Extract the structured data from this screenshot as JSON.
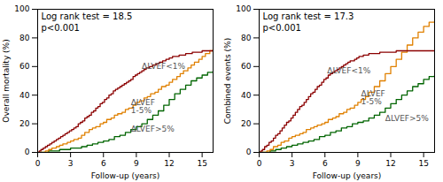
{
  "chart_data": [
    {
      "type": "step",
      "title": "Log rank test = 18.5",
      "subtitle": "p<0.001",
      "x_label": "Follow-up (years)",
      "y_label": "Overall mortality (%)",
      "xlim": [
        0,
        16
      ],
      "ylim": [
        0,
        100
      ],
      "xticks": [
        0,
        3,
        6,
        9,
        12,
        15
      ],
      "yticks": [
        0,
        20,
        40,
        60,
        80,
        100
      ],
      "grid": false,
      "series": [
        {
          "color": "#006400",
          "x": [
            0,
            0.5,
            1.0,
            1.5,
            2.0,
            2.5,
            3.0,
            3.5,
            4.0,
            4.5,
            5.0,
            5.5,
            6.0,
            6.5,
            7.0,
            7.5,
            8.0,
            8.5,
            9.0,
            9.5,
            10.0,
            10.5,
            11.0,
            11.5,
            12.0,
            12.5,
            13.0,
            13.5,
            14.0,
            14.5,
            15.0,
            15.5,
            16.0
          ],
          "values": [
            0,
            0,
            1,
            1,
            2,
            2,
            3,
            3,
            4,
            5,
            6,
            7,
            8,
            9,
            11,
            12,
            14,
            16,
            18,
            20,
            23,
            26,
            29,
            33,
            37,
            41,
            44,
            47,
            50,
            52,
            54,
            56,
            57
          ]
        },
        {
          "color": "#e08000",
          "x": [
            0,
            0.3,
            0.7,
            1.0,
            1.3,
            1.7,
            2.0,
            2.3,
            2.7,
            3.0,
            3.3,
            3.7,
            4.0,
            4.3,
            4.7,
            5.0,
            5.3,
            5.7,
            6.0,
            6.3,
            6.7,
            7.0,
            7.3,
            7.7,
            8.0,
            8.3,
            8.7,
            9.0,
            9.3,
            9.7,
            10.0,
            10.3,
            10.7,
            11.0,
            11.3,
            11.7,
            12.0,
            12.3,
            12.7,
            13.0,
            13.3,
            13.7,
            14.0,
            14.3,
            14.7,
            15.0,
            15.3,
            15.7,
            16.0
          ],
          "values": [
            0,
            0,
            1,
            2,
            3,
            4,
            5,
            6,
            7,
            8,
            9,
            10,
            12,
            14,
            16,
            17,
            18,
            20,
            21,
            23,
            24,
            26,
            27,
            28,
            30,
            31,
            33,
            35,
            36,
            38,
            39,
            41,
            42,
            44,
            46,
            47,
            49,
            51,
            53,
            55,
            57,
            59,
            61,
            63,
            65,
            67,
            69,
            71,
            72
          ]
        },
        {
          "color": "#8b0000",
          "x": [
            0,
            0.15,
            0.3,
            0.5,
            0.7,
            0.9,
            1.1,
            1.3,
            1.5,
            1.7,
            1.9,
            2.1,
            2.3,
            2.5,
            2.7,
            2.9,
            3.1,
            3.3,
            3.5,
            3.7,
            3.9,
            4.1,
            4.3,
            4.5,
            4.7,
            4.9,
            5.1,
            5.3,
            5.5,
            5.7,
            5.9,
            6.1,
            6.3,
            6.5,
            6.7,
            6.9,
            7.1,
            7.3,
            7.5,
            7.7,
            7.9,
            8.1,
            8.3,
            8.5,
            8.7,
            8.9,
            9.1,
            9.3,
            9.5,
            9.7,
            9.9,
            10.2,
            10.5,
            10.8,
            11.1,
            11.4,
            11.7,
            12.0,
            12.3,
            12.6,
            12.9,
            13.2,
            13.5,
            13.8,
            14.1,
            14.4,
            14.7,
            15.0,
            15.3,
            15.6,
            16.0
          ],
          "values": [
            0,
            1,
            2,
            3,
            4,
            5,
            6,
            7,
            8,
            9,
            10,
            11,
            12,
            13,
            14,
            15,
            16,
            17,
            18,
            20,
            21,
            22,
            24,
            25,
            26,
            28,
            29,
            31,
            32,
            34,
            35,
            37,
            38,
            40,
            41,
            43,
            44,
            45,
            46,
            47,
            48,
            49,
            50,
            51,
            53,
            54,
            55,
            56,
            57,
            58,
            59,
            60,
            61,
            62,
            63,
            64,
            65,
            66,
            67,
            67,
            68,
            68,
            69,
            69,
            70,
            70,
            70,
            71,
            71,
            71,
            71
          ]
        }
      ],
      "annotations": [
        {
          "x": 9.5,
          "y": 60,
          "text": "ΔLVEF<1%"
        },
        {
          "x": 8.5,
          "y": 32,
          "text": "ΔLVEF\n1-5%"
        },
        {
          "x": 8.5,
          "y": 16,
          "text": "ΔLVEF>5%"
        }
      ]
    },
    {
      "type": "step",
      "title": "Log rank test = 17.3",
      "subtitle": "p<0.001",
      "x_label": "Follow-up (years)",
      "y_label": "Combined events (%)",
      "xlim": [
        0,
        16
      ],
      "ylim": [
        0,
        100
      ],
      "xticks": [
        0,
        3,
        6,
        9,
        12,
        15
      ],
      "yticks": [
        0,
        20,
        40,
        60,
        80,
        100
      ],
      "grid": false,
      "series": [
        {
          "color": "#006400",
          "x": [
            0,
            0.5,
            1.0,
            1.5,
            2.0,
            2.5,
            3.0,
            3.5,
            4.0,
            4.5,
            5.0,
            5.5,
            6.0,
            6.5,
            7.0,
            7.5,
            8.0,
            8.5,
            9.0,
            9.5,
            10.0,
            10.5,
            11.0,
            11.5,
            12.0,
            12.5,
            13.0,
            13.5,
            14.0,
            14.5,
            15.0,
            15.5,
            16.0
          ],
          "values": [
            0,
            0,
            1,
            2,
            3,
            4,
            5,
            6,
            7,
            8,
            9,
            11,
            12,
            14,
            15,
            17,
            18,
            20,
            21,
            22,
            24,
            26,
            28,
            31,
            34,
            37,
            40,
            43,
            46,
            48,
            51,
            53,
            54
          ]
        },
        {
          "color": "#e08000",
          "x": [
            0,
            0.3,
            0.7,
            1.0,
            1.3,
            1.7,
            2.0,
            2.3,
            2.7,
            3.0,
            3.3,
            3.7,
            4.0,
            4.3,
            4.7,
            5.0,
            5.3,
            5.7,
            6.0,
            6.3,
            6.7,
            7.0,
            7.3,
            7.7,
            8.0,
            8.3,
            8.7,
            9.0,
            9.3,
            9.7,
            10.0,
            10.5,
            11.0,
            11.5,
            12.0,
            12.5,
            13.0,
            13.5,
            14.0,
            14.5,
            15.0,
            15.5,
            16.0
          ],
          "values": [
            0,
            0,
            1,
            2,
            4,
            5,
            7,
            8,
            10,
            11,
            12,
            13,
            14,
            16,
            17,
            18,
            19,
            20,
            21,
            23,
            24,
            25,
            27,
            28,
            30,
            31,
            33,
            35,
            37,
            39,
            42,
            46,
            50,
            55,
            60,
            65,
            70,
            75,
            80,
            84,
            88,
            91,
            92
          ]
        },
        {
          "color": "#8b0000",
          "x": [
            0,
            0.15,
            0.3,
            0.5,
            0.7,
            0.9,
            1.1,
            1.3,
            1.5,
            1.7,
            1.9,
            2.1,
            2.3,
            2.5,
            2.7,
            2.9,
            3.1,
            3.3,
            3.5,
            3.7,
            3.9,
            4.1,
            4.3,
            4.5,
            4.7,
            4.9,
            5.1,
            5.3,
            5.5,
            5.7,
            5.9,
            6.1,
            6.3,
            6.5,
            6.7,
            6.9,
            7.1,
            7.3,
            7.5,
            7.7,
            7.9,
            8.1,
            8.3,
            8.5,
            8.7,
            8.9,
            9.1,
            9.5,
            10.0,
            10.5,
            11.0,
            11.5,
            12.0,
            12.5,
            13.0,
            14.0,
            15.0,
            16.0
          ],
          "values": [
            0,
            1,
            2,
            4,
            5,
            7,
            8,
            10,
            12,
            13,
            15,
            17,
            19,
            21,
            22,
            24,
            26,
            28,
            30,
            32,
            33,
            35,
            37,
            39,
            41,
            42,
            44,
            46,
            47,
            49,
            51,
            52,
            54,
            55,
            56,
            57,
            58,
            59,
            60,
            61,
            62,
            63,
            64,
            64,
            65,
            66,
            67,
            68,
            69,
            69,
            70,
            70,
            70,
            71,
            71,
            71,
            71,
            71
          ]
        }
      ],
      "annotations": [
        {
          "x": 6.2,
          "y": 57,
          "text": "ΔLVEF<1%"
        },
        {
          "x": 9.3,
          "y": 38,
          "text": "ΔLVEF\n1-5%"
        },
        {
          "x": 11.5,
          "y": 24,
          "text": "ΔLVEF>5%"
        }
      ]
    }
  ]
}
